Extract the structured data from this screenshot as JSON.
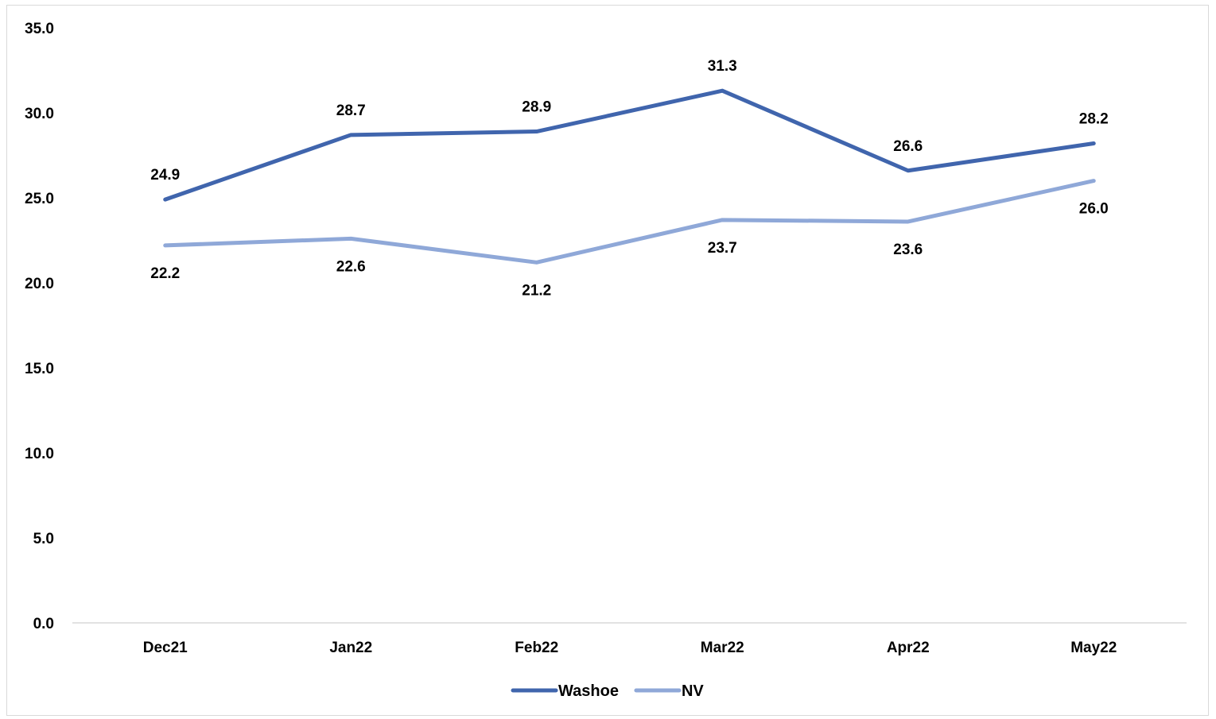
{
  "chart_data": {
    "type": "line",
    "title": "",
    "xlabel": "",
    "ylabel": "",
    "categories": [
      "Dec21",
      "Jan22",
      "Feb22",
      "Mar22",
      "Apr22",
      "May22"
    ],
    "ylim": [
      0,
      35
    ],
    "yticks": [
      0,
      5,
      10,
      15,
      20,
      25,
      30,
      35
    ],
    "ytick_labels": [
      "0.0",
      "5.0",
      "10.0",
      "15.0",
      "20.0",
      "25.0",
      "30.0",
      "35.0"
    ],
    "grid": false,
    "legend_position": "bottom",
    "series": [
      {
        "name": "Washoe",
        "color": "#4065AD",
        "values": [
          24.9,
          28.7,
          28.9,
          31.3,
          26.6,
          28.2
        ],
        "labels": [
          "24.9",
          "28.7",
          "28.9",
          "31.3",
          "26.6",
          "28.2"
        ],
        "label_position": "above"
      },
      {
        "name": "NV",
        "color": "#8FA8D8",
        "values": [
          22.2,
          22.6,
          21.2,
          23.7,
          23.6,
          26.0
        ],
        "labels": [
          "22.2",
          "22.6",
          "21.2",
          "23.7",
          "23.6",
          "26.0"
        ],
        "label_position": "below"
      }
    ]
  }
}
